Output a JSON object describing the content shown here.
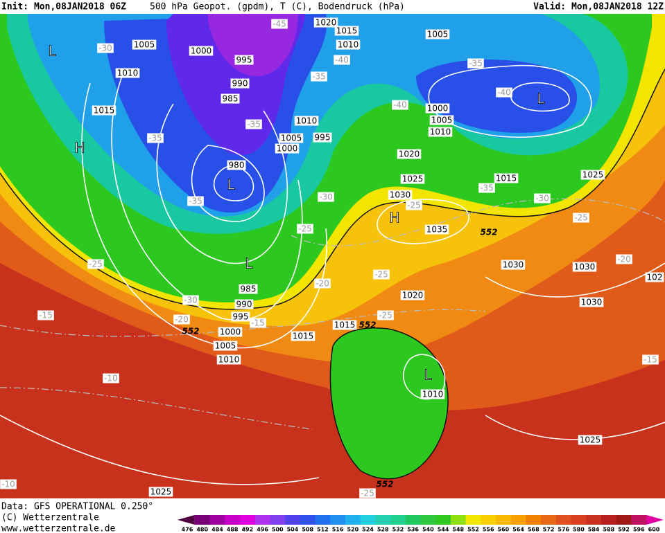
{
  "header": {
    "init": "Init: Mon,08JAN2018 06Z",
    "title": "500 hPa Geopot. (gpdm), T (C), Bodendruck (hPa)",
    "valid": "Valid: Mon,08JAN2018 12Z"
  },
  "footer": {
    "source": "Data: GFS OPERATIONAL 0.250°",
    "copyright": "(C) Wetterzentrale",
    "url": "www.wetterzentrale.de"
  },
  "colorbar": {
    "labels": [
      "476",
      "480",
      "484",
      "488",
      "492",
      "496",
      "500",
      "504",
      "508",
      "512",
      "516",
      "520",
      "524",
      "528",
      "532",
      "536",
      "540",
      "544",
      "548",
      "552",
      "556",
      "560",
      "564",
      "568",
      "572",
      "576",
      "580",
      "584",
      "588",
      "592",
      "596",
      "600"
    ]
  },
  "map_labels": {
    "pressure": [
      "1020",
      "1015",
      "1010",
      "1005",
      "1000",
      "995",
      "990",
      "985",
      "1010",
      "1015",
      "1010",
      "1005",
      "1000",
      "995",
      "980",
      "1005",
      "1000",
      "1005",
      "1010",
      "1020",
      "1025",
      "1030",
      "1035",
      "1015",
      "1025",
      "1030",
      "1030",
      "1030",
      "102",
      "1020",
      "1015",
      "1015",
      "985",
      "990",
      "995",
      "1000",
      "1005",
      "1010",
      "1010",
      "1025",
      "1025"
    ],
    "temperature": [
      "-45",
      "-30",
      "-40",
      "-35",
      "-35",
      "-40",
      "-40",
      "-35",
      "-35",
      "-30",
      "-35",
      "-35",
      "-30",
      "-25",
      "-25",
      "-25",
      "-20",
      "-25",
      "-25",
      "-20",
      "-30",
      "-20",
      "-15",
      "-15",
      "-25",
      "-10",
      "-15",
      "-10",
      "-25"
    ],
    "centers": [
      "L",
      "L",
      "H",
      "L",
      "H",
      "L",
      "L"
    ],
    "height": [
      "552",
      "552",
      "552",
      "552"
    ]
  }
}
